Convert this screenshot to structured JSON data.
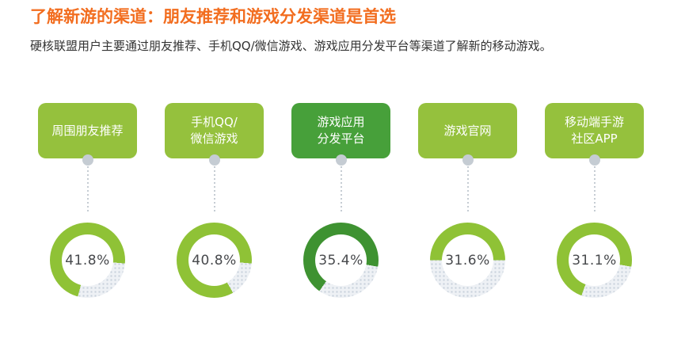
{
  "header": {
    "title": "了解新游的渠道：朋友推荐和游戏分发渠道是首选",
    "subtitle": "硬核联盟用户主要通过朋友推荐、手机QQ/微信游戏、游戏应用分发平台等渠道了解新的移动游戏。"
  },
  "colors": {
    "title_orange": "#f26d1f",
    "subtitle_text": "#333333",
    "light_green": "#95c13d",
    "dark_green": "#47a03a",
    "ring_light_green": "#8fc236",
    "ring_dark_green": "#3e9231",
    "ring_track": "#eef1f5",
    "ring_track_dot": "#c7d0da",
    "connector_gray": "#c5ccd3",
    "value_text": "#47494c",
    "box_text": "#ffffff",
    "background": "#ffffff"
  },
  "chart_data": {
    "type": "pie",
    "subtype": "donut-small-multiples",
    "title": "了解新游的渠道：朋友推荐和游戏分发渠道是首选",
    "subtitle": "硬核联盟用户主要通过朋友推荐、手机QQ/微信游戏、游戏应用分发平台等渠道了解新的移动游戏。",
    "unit": "%",
    "categories": [
      "周围朋友推荐",
      "手机QQ/微信游戏",
      "游戏应用分发平台",
      "游戏官网",
      "移动端手游社区APP"
    ],
    "values": [
      41.8,
      40.8,
      35.4,
      31.6,
      31.1
    ],
    "legend_position": "none",
    "grid": false,
    "items": [
      {
        "label_lines": [
          "周围朋友推荐"
        ],
        "value": 41.8,
        "value_label": "41.8%",
        "emphasis": false,
        "arc": {
          "start_deg": 195,
          "sweep_deg": 260
        }
      },
      {
        "label_lines": [
          "手机QQ/",
          "微信游戏"
        ],
        "value": 40.8,
        "value_label": "40.8%",
        "emphasis": false,
        "arc": {
          "start_deg": 150,
          "sweep_deg": 305
        }
      },
      {
        "label_lines": [
          "游戏应用",
          "分发平台"
        ],
        "value": 35.4,
        "value_label": "35.4%",
        "emphasis": true,
        "arc": {
          "start_deg": 215,
          "sweep_deg": 245
        }
      },
      {
        "label_lines": [
          "游戏官网"
        ],
        "value": 31.6,
        "value_label": "31.6%",
        "emphasis": false,
        "arc": {
          "start_deg": 270,
          "sweep_deg": 180
        }
      },
      {
        "label_lines": [
          "移动端手游",
          "社区APP"
        ],
        "value": 31.1,
        "value_label": "31.1%",
        "emphasis": false,
        "arc": {
          "start_deg": 200,
          "sweep_deg": 260
        }
      }
    ]
  }
}
